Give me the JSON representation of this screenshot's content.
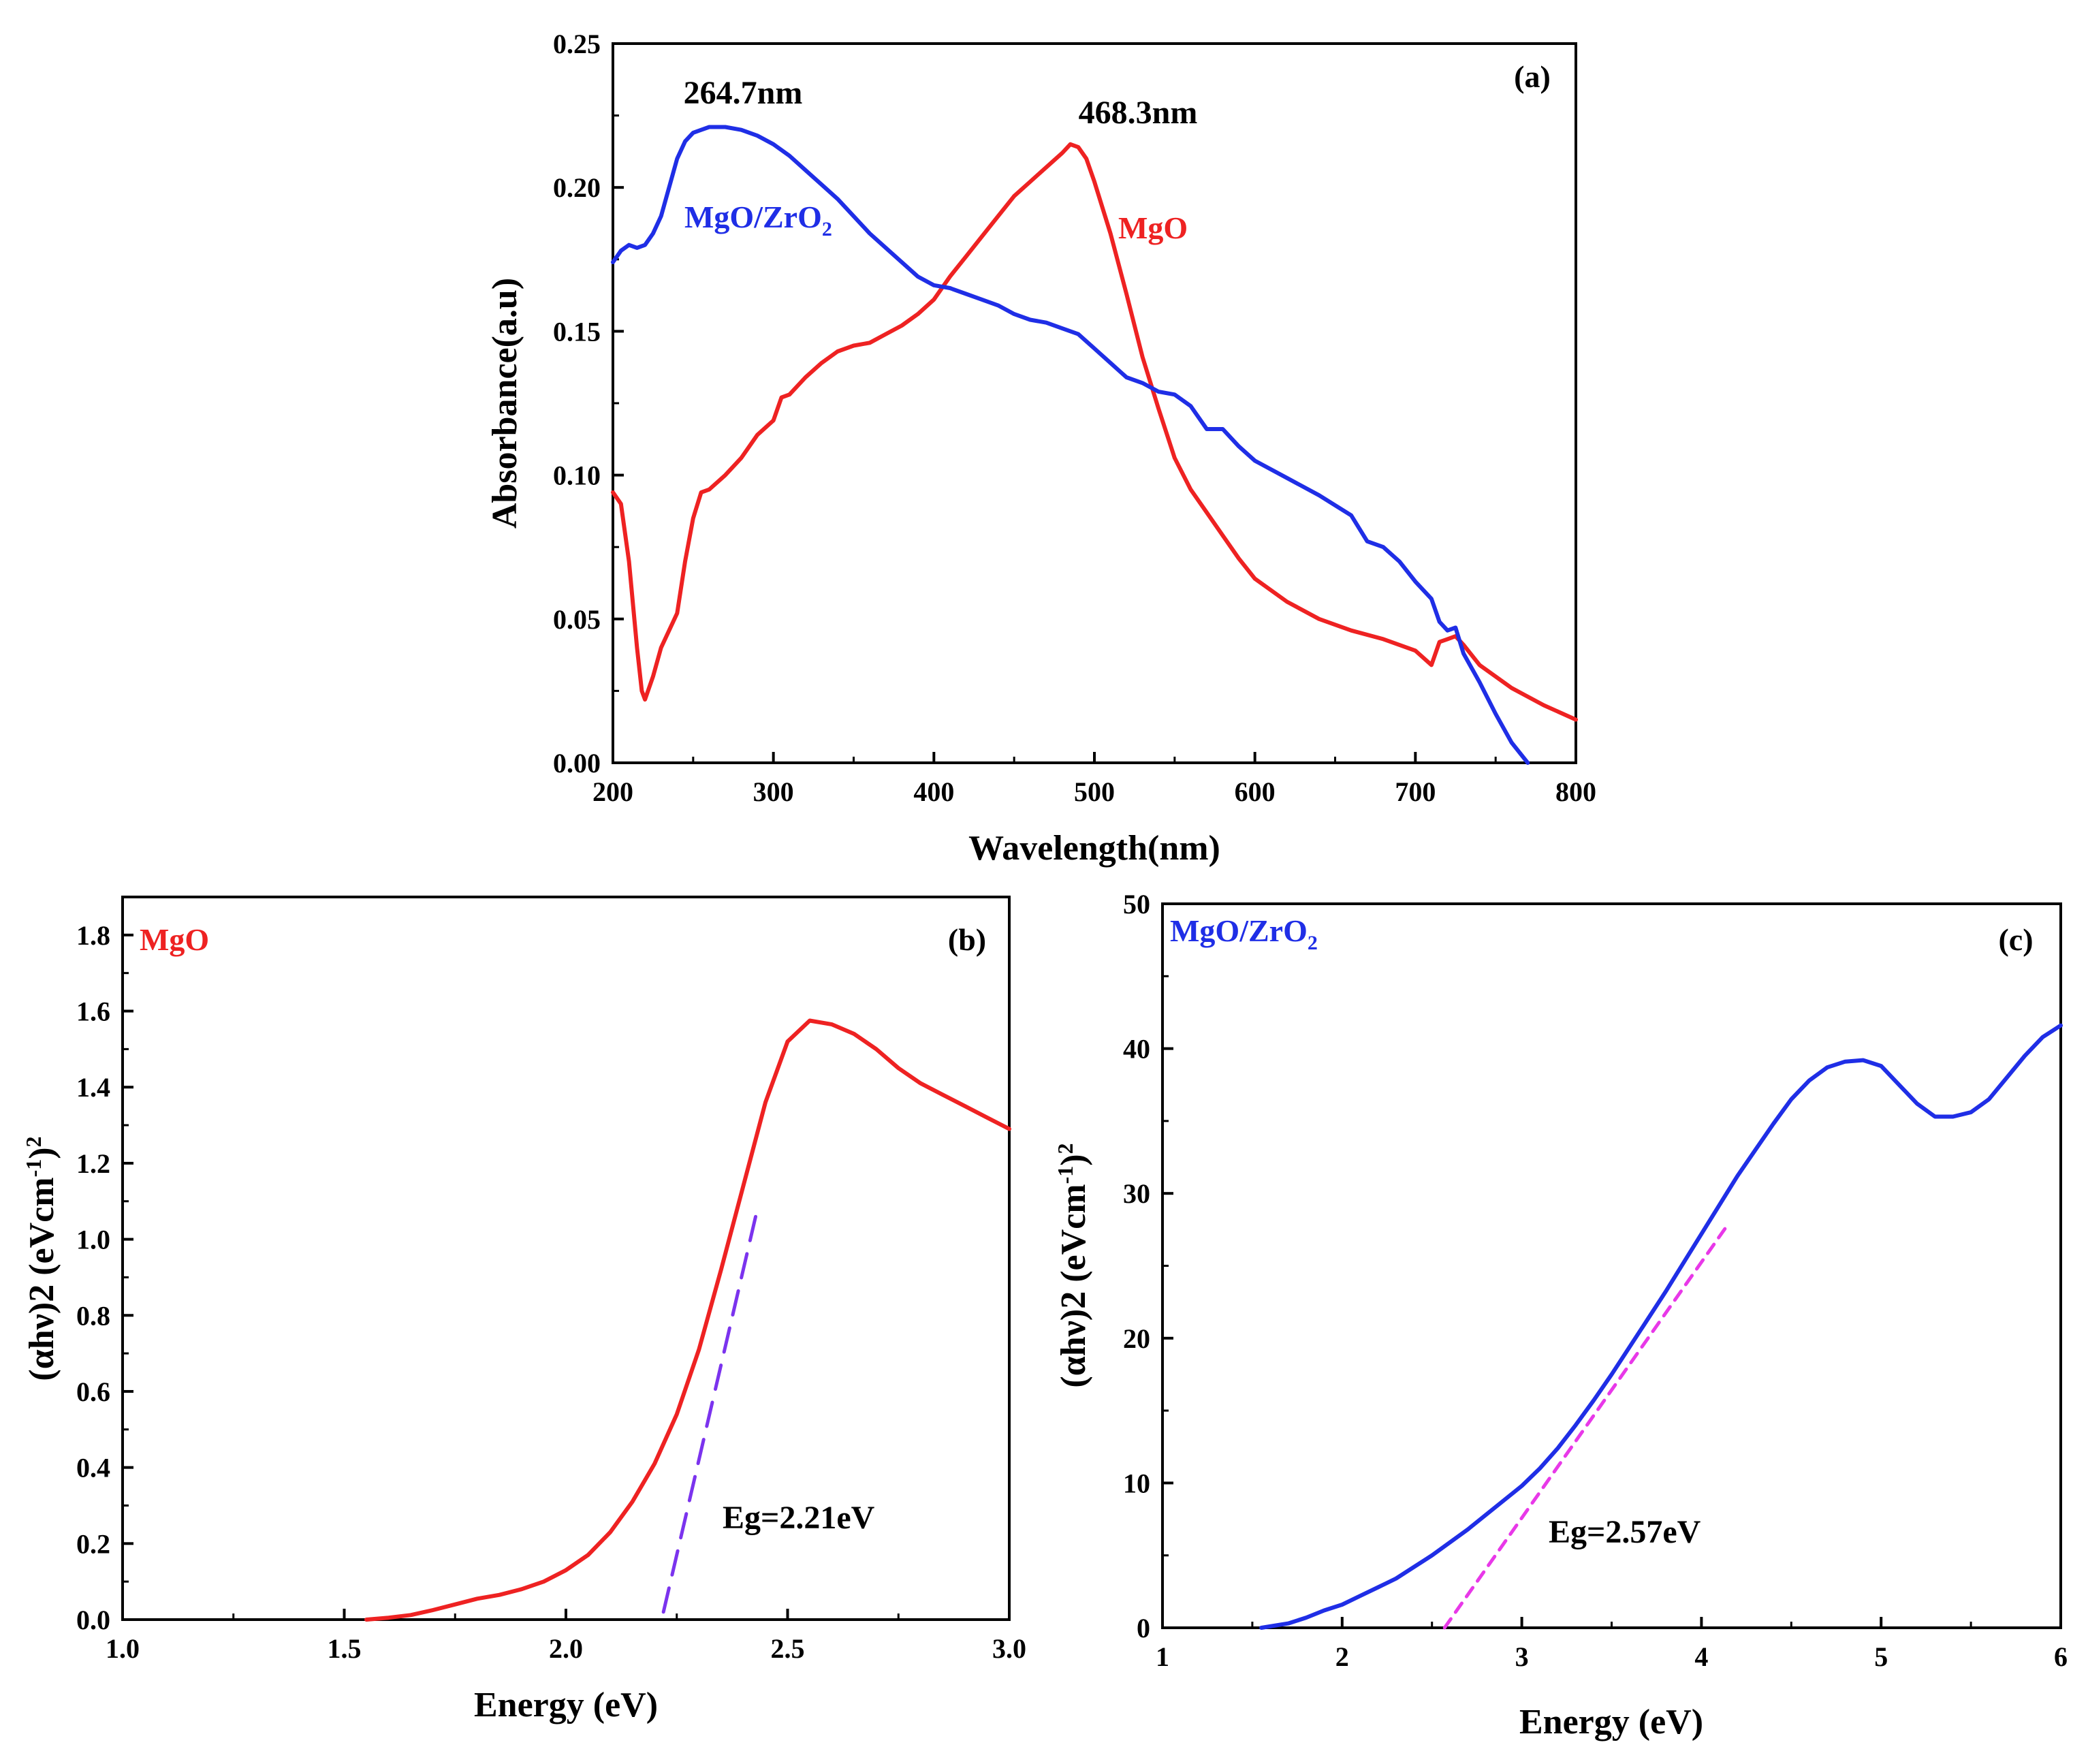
{
  "colors": {
    "mgo": "#ee2222",
    "mgo_zro2": "#1f2ee6",
    "fit_b": "#7b33ee",
    "fit_c": "#e838e8"
  },
  "chart_data": [
    {
      "type": "line",
      "panel_label": "(a)",
      "title": "",
      "xlabel": "Wavelength(nm)",
      "ylabel": "Absorbance(a.u)",
      "xlim": [
        200,
        800
      ],
      "ylim": [
        0,
        0.25
      ],
      "x_ticks": [
        "200",
        "300",
        "400",
        "500",
        "600",
        "700",
        "800"
      ],
      "y_ticks": [
        "0.00",
        "0.05",
        "0.10",
        "0.15",
        "0.20",
        "0.25"
      ],
      "annotations": [
        {
          "text": "264.7nm",
          "x": 282,
          "y": 0.2305
        },
        {
          "text": "468.3nm",
          "x": 498,
          "y": 0.2245
        }
      ],
      "series": [
        {
          "name": "MgO",
          "color": "#ee2222",
          "label_at": [
            515,
            0.184
          ],
          "x": [
            200,
            205,
            210,
            215,
            218,
            220,
            225,
            230,
            240,
            245,
            250,
            255,
            260,
            270,
            280,
            290,
            300,
            305,
            310,
            320,
            330,
            340,
            350,
            360,
            370,
            380,
            390,
            400,
            410,
            420,
            430,
            440,
            450,
            460,
            470,
            480,
            485,
            490,
            495,
            500,
            510,
            520,
            530,
            540,
            550,
            560,
            570,
            580,
            590,
            600,
            620,
            640,
            660,
            680,
            700,
            710,
            715,
            720,
            725,
            730,
            740,
            760,
            780,
            800
          ],
          "y": [
            0.094,
            0.09,
            0.07,
            0.04,
            0.025,
            0.022,
            0.03,
            0.04,
            0.052,
            0.07,
            0.085,
            0.094,
            0.095,
            0.1,
            0.106,
            0.114,
            0.119,
            0.127,
            0.128,
            0.134,
            0.139,
            0.143,
            0.145,
            0.146,
            0.149,
            0.152,
            0.156,
            0.161,
            0.169,
            0.176,
            0.183,
            0.19,
            0.197,
            0.202,
            0.207,
            0.212,
            0.215,
            0.214,
            0.21,
            0.202,
            0.184,
            0.163,
            0.141,
            0.123,
            0.106,
            0.095,
            0.087,
            0.079,
            0.071,
            0.064,
            0.056,
            0.05,
            0.046,
            0.043,
            0.039,
            0.034,
            0.042,
            0.043,
            0.044,
            0.041,
            0.034,
            0.026,
            0.02,
            0.015
          ]
        },
        {
          "name": "MgO/ZrO2",
          "color": "#1f2ee6",
          "label_at": [
            246,
            0.186
          ],
          "x": [
            200,
            205,
            210,
            215,
            220,
            225,
            230,
            235,
            240,
            245,
            250,
            255,
            260,
            265,
            270,
            280,
            290,
            300,
            310,
            320,
            330,
            340,
            350,
            360,
            370,
            380,
            390,
            400,
            410,
            420,
            430,
            440,
            450,
            460,
            470,
            480,
            490,
            500,
            510,
            520,
            530,
            540,
            550,
            560,
            570,
            580,
            590,
            600,
            620,
            640,
            660,
            670,
            680,
            690,
            700,
            710,
            715,
            720,
            725,
            730,
            740,
            750,
            760,
            770
          ],
          "y": [
            0.174,
            0.178,
            0.18,
            0.179,
            0.18,
            0.184,
            0.19,
            0.2,
            0.21,
            0.216,
            0.219,
            0.22,
            0.221,
            0.221,
            0.221,
            0.22,
            0.218,
            0.215,
            0.211,
            0.206,
            0.201,
            0.196,
            0.19,
            0.184,
            0.179,
            0.174,
            0.169,
            0.166,
            0.165,
            0.163,
            0.161,
            0.159,
            0.156,
            0.154,
            0.153,
            0.151,
            0.149,
            0.144,
            0.139,
            0.134,
            0.132,
            0.129,
            0.128,
            0.124,
            0.116,
            0.116,
            0.11,
            0.105,
            0.099,
            0.093,
            0.086,
            0.077,
            0.075,
            0.07,
            0.063,
            0.057,
            0.049,
            0.046,
            0.047,
            0.038,
            0.028,
            0.017,
            0.007,
            0.0
          ]
        }
      ]
    },
    {
      "type": "line",
      "panel_label": "(b)",
      "title": "",
      "xlabel": "Energy (eV)",
      "ylabel": "(αhν)2 (eVcm-1)2",
      "ylabel_parts": {
        "main": "(αhν)2 (eVcm",
        "sup1": "-1",
        "close": ")",
        "sup2": "2"
      },
      "xlim": [
        1.0,
        3.0
      ],
      "ylim": [
        0,
        1.9
      ],
      "x_ticks": [
        "1.0",
        "1.5",
        "2.0",
        "2.5",
        "3.0"
      ],
      "y_ticks": [
        "0.0",
        "0.2",
        "0.4",
        "0.6",
        "0.8",
        "1.0",
        "1.2",
        "1.4",
        "1.6",
        "1.8"
      ],
      "corner_label": "MgO",
      "annotations": [
        {
          "text": "Eg=2.21eV",
          "x": 2.34,
          "y": 0.535
        }
      ],
      "series": [
        {
          "name": "MgO",
          "color": "#ee2222",
          "x": [
            1.55,
            1.6,
            1.65,
            1.7,
            1.75,
            1.8,
            1.85,
            1.9,
            1.95,
            2.0,
            2.05,
            2.1,
            2.15,
            2.2,
            2.25,
            2.3,
            2.35,
            2.4,
            2.45,
            2.5,
            2.55,
            2.6,
            2.65,
            2.7,
            2.75,
            2.8,
            2.85,
            2.9,
            2.95,
            3.0
          ],
          "y": [
            0.0,
            0.005,
            0.012,
            0.025,
            0.04,
            0.055,
            0.065,
            0.08,
            0.1,
            0.13,
            0.17,
            0.23,
            0.31,
            0.41,
            0.54,
            0.71,
            0.92,
            1.14,
            1.36,
            1.52,
            1.575,
            1.565,
            1.54,
            1.5,
            1.45,
            1.41,
            1.38,
            1.35,
            1.32,
            1.29
          ]
        },
        {
          "name": "linear fit",
          "color": "#7b33ee",
          "dashed": true,
          "x": [
            2.22,
            2.43
          ],
          "y": [
            0.02,
            1.07
          ]
        }
      ]
    },
    {
      "type": "line",
      "panel_label": "(c)",
      "title": "",
      "xlabel": "Energy (eV)",
      "ylabel": "(αhν)2 (eVcm-1)2",
      "ylabel_parts": {
        "main": "(αhν)2 (eVcm",
        "sup1": "-1",
        "close": ")",
        "sup2": "2"
      },
      "xlim": [
        1,
        6
      ],
      "ylim": [
        0,
        50
      ],
      "x_ticks": [
        "1",
        "2",
        "3",
        "4",
        "5",
        "6"
      ],
      "y_ticks": [
        "0",
        "10",
        "20",
        "30",
        "40",
        "50"
      ],
      "corner_label": "MgO/ZrO2",
      "annotations": [
        {
          "text": "Eg=2.57eV",
          "x": 3.15,
          "y": 6.0
        }
      ],
      "series": [
        {
          "name": "MgO/ZrO2",
          "color": "#1f2ee6",
          "x": [
            1.55,
            1.7,
            1.8,
            1.9,
            2.0,
            2.1,
            2.2,
            2.3,
            2.4,
            2.5,
            2.6,
            2.7,
            2.8,
            2.9,
            3.0,
            3.1,
            3.2,
            3.3,
            3.4,
            3.5,
            3.6,
            3.7,
            3.8,
            3.9,
            4.0,
            4.1,
            4.2,
            4.3,
            4.4,
            4.5,
            4.6,
            4.7,
            4.8,
            4.9,
            5.0,
            5.1,
            5.2,
            5.3,
            5.4,
            5.5,
            5.6,
            5.7,
            5.8,
            5.9,
            6.0
          ],
          "y": [
            0.0,
            0.3,
            0.7,
            1.2,
            1.6,
            2.2,
            2.8,
            3.4,
            4.2,
            5.0,
            5.9,
            6.8,
            7.8,
            8.8,
            9.8,
            11.0,
            12.4,
            14.0,
            15.7,
            17.5,
            19.4,
            21.3,
            23.2,
            25.2,
            27.2,
            29.2,
            31.2,
            33.0,
            34.8,
            36.5,
            37.8,
            38.7,
            39.1,
            39.2,
            38.8,
            37.5,
            36.2,
            35.3,
            35.3,
            35.6,
            36.5,
            38.0,
            39.5,
            40.8,
            41.6
          ]
        },
        {
          "name": "linear fit",
          "color": "#e838e8",
          "dashed": true,
          "x": [
            2.57,
            4.15
          ],
          "y": [
            0.0,
            27.9
          ]
        }
      ]
    }
  ]
}
